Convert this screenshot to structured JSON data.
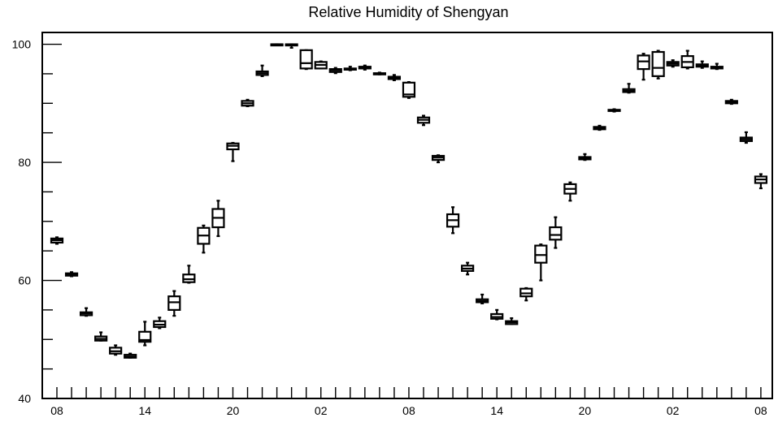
{
  "chart_data": {
    "type": "boxplot",
    "title": "Relative Humidity of Shengyan",
    "xlabel": "",
    "ylabel": "",
    "ylim": [
      40,
      102
    ],
    "y_ticks": [
      40,
      60,
      80,
      100
    ],
    "x_tick_labels": [
      "08",
      "14",
      "20",
      "02",
      "08",
      "14",
      "20",
      "02",
      "08"
    ],
    "x_tick_label_hours": [
      0,
      6,
      12,
      18,
      24,
      30,
      36,
      42,
      48
    ],
    "grid": false,
    "boxes": [
      {
        "h": 0,
        "min": 66.2,
        "q1": 66.4,
        "median": 66.8,
        "q3": 67.1,
        "max": 67.3
      },
      {
        "h": 1,
        "min": 60.7,
        "q1": 60.8,
        "median": 61.0,
        "q3": 61.2,
        "max": 61.4
      },
      {
        "h": 2,
        "min": 54.0,
        "q1": 54.1,
        "median": 54.4,
        "q3": 54.6,
        "max": 55.3
      },
      {
        "h": 3,
        "min": 49.8,
        "q1": 49.8,
        "median": 50.1,
        "q3": 50.5,
        "max": 51.2
      },
      {
        "h": 4,
        "min": 47.4,
        "q1": 47.6,
        "median": 48.0,
        "q3": 48.6,
        "max": 49.0
      },
      {
        "h": 5,
        "min": 46.9,
        "q1": 46.9,
        "median": 47.1,
        "q3": 47.4,
        "max": 47.6
      },
      {
        "h": 6,
        "min": 49.0,
        "q1": 49.6,
        "median": 49.9,
        "q3": 51.3,
        "max": 53.0
      },
      {
        "h": 7,
        "min": 51.9,
        "q1": 52.1,
        "median": 52.5,
        "q3": 53.1,
        "max": 53.7
      },
      {
        "h": 8,
        "min": 54.0,
        "q1": 55.0,
        "median": 56.3,
        "q3": 57.3,
        "max": 58.2
      },
      {
        "h": 9,
        "min": 59.6,
        "q1": 59.7,
        "median": 60.2,
        "q3": 61.0,
        "max": 62.5
      },
      {
        "h": 10,
        "min": 64.7,
        "q1": 66.2,
        "median": 67.6,
        "q3": 68.9,
        "max": 69.3
      },
      {
        "h": 11,
        "min": 67.5,
        "q1": 69.0,
        "median": 70.6,
        "q3": 72.1,
        "max": 73.5
      },
      {
        "h": 12,
        "min": 80.2,
        "q1": 82.2,
        "median": 82.8,
        "q3": 83.2,
        "max": 83.3
      },
      {
        "h": 13,
        "min": 89.5,
        "q1": 89.6,
        "median": 90.0,
        "q3": 90.4,
        "max": 90.6
      },
      {
        "h": 14,
        "min": 94.6,
        "q1": 94.8,
        "median": 95.1,
        "q3": 95.4,
        "max": 96.4
      },
      {
        "h": 15,
        "min": 99.9,
        "q1": 99.9,
        "median": 100.0,
        "q3": 100.0,
        "max": 100.0
      },
      {
        "h": 16,
        "min": 99.4,
        "q1": 99.8,
        "median": 99.9,
        "q3": 100.0,
        "max": 100.0
      },
      {
        "h": 17,
        "min": 95.8,
        "q1": 95.9,
        "median": 96.8,
        "q3": 99.0,
        "max": 99.0
      },
      {
        "h": 18,
        "min": 95.9,
        "q1": 95.9,
        "median": 96.5,
        "q3": 97.0,
        "max": 97.1
      },
      {
        "h": 19,
        "min": 95.1,
        "q1": 95.3,
        "median": 95.6,
        "q3": 95.8,
        "max": 96.0
      },
      {
        "h": 20,
        "min": 95.6,
        "q1": 95.7,
        "median": 95.8,
        "q3": 95.9,
        "max": 96.2
      },
      {
        "h": 21,
        "min": 95.7,
        "q1": 95.9,
        "median": 96.1,
        "q3": 96.2,
        "max": 96.4
      },
      {
        "h": 22,
        "min": 94.9,
        "q1": 94.9,
        "median": 95.0,
        "q3": 95.1,
        "max": 95.2
      },
      {
        "h": 23,
        "min": 93.9,
        "q1": 94.1,
        "median": 94.3,
        "q3": 94.5,
        "max": 94.8
      },
      {
        "h": 24,
        "min": 90.9,
        "q1": 91.1,
        "median": 91.5,
        "q3": 93.5,
        "max": 93.6
      },
      {
        "h": 25,
        "min": 86.3,
        "q1": 86.7,
        "median": 87.2,
        "q3": 87.6,
        "max": 87.9
      },
      {
        "h": 26,
        "min": 80.0,
        "q1": 80.4,
        "median": 80.8,
        "q3": 81.1,
        "max": 81.2
      },
      {
        "h": 27,
        "min": 68.0,
        "q1": 69.1,
        "median": 70.2,
        "q3": 71.2,
        "max": 72.4
      },
      {
        "h": 28,
        "min": 61.0,
        "q1": 61.6,
        "median": 62.0,
        "q3": 62.5,
        "max": 63.0
      },
      {
        "h": 29,
        "min": 56.1,
        "q1": 56.3,
        "median": 56.5,
        "q3": 56.8,
        "max": 57.6
      },
      {
        "h": 30,
        "min": 53.4,
        "q1": 53.5,
        "median": 53.8,
        "q3": 54.3,
        "max": 55.0
      },
      {
        "h": 31,
        "min": 52.6,
        "q1": 52.6,
        "median": 52.9,
        "q3": 53.1,
        "max": 53.6
      },
      {
        "h": 32,
        "min": 56.6,
        "q1": 57.3,
        "median": 57.8,
        "q3": 58.6,
        "max": 58.7
      },
      {
        "h": 33,
        "min": 60.0,
        "q1": 63.0,
        "median": 64.3,
        "q3": 65.9,
        "max": 66.1
      },
      {
        "h": 34,
        "min": 65.5,
        "q1": 66.9,
        "median": 67.7,
        "q3": 69.0,
        "max": 70.7
      },
      {
        "h": 35,
        "min": 73.5,
        "q1": 74.7,
        "median": 75.5,
        "q3": 76.3,
        "max": 76.6
      },
      {
        "h": 36,
        "min": 80.4,
        "q1": 80.5,
        "median": 80.7,
        "q3": 80.9,
        "max": 81.4
      },
      {
        "h": 37,
        "min": 85.5,
        "q1": 85.6,
        "median": 85.8,
        "q3": 86.0,
        "max": 86.2
      },
      {
        "h": 38,
        "min": 88.6,
        "q1": 88.7,
        "median": 88.8,
        "q3": 88.9,
        "max": 89.0
      },
      {
        "h": 39,
        "min": 91.8,
        "q1": 91.9,
        "median": 92.1,
        "q3": 92.4,
        "max": 93.3
      },
      {
        "h": 40,
        "min": 94.0,
        "q1": 95.8,
        "median": 97.1,
        "q3": 98.1,
        "max": 98.4
      },
      {
        "h": 41,
        "min": 94.2,
        "q1": 94.6,
        "median": 96.0,
        "q3": 98.7,
        "max": 98.9
      },
      {
        "h": 42,
        "min": 96.2,
        "q1": 96.4,
        "median": 96.7,
        "q3": 97.0,
        "max": 97.3
      },
      {
        "h": 43,
        "min": 95.9,
        "q1": 96.1,
        "median": 97.0,
        "q3": 98.0,
        "max": 98.9
      },
      {
        "h": 44,
        "min": 96.0,
        "q1": 96.2,
        "median": 96.4,
        "q3": 96.6,
        "max": 97.1
      },
      {
        "h": 45,
        "min": 95.8,
        "q1": 95.9,
        "median": 96.1,
        "q3": 96.2,
        "max": 96.7
      },
      {
        "h": 46,
        "min": 89.9,
        "q1": 90.0,
        "median": 90.2,
        "q3": 90.4,
        "max": 90.6
      },
      {
        "h": 47,
        "min": 83.3,
        "q1": 83.6,
        "median": 83.9,
        "q3": 84.2,
        "max": 85.1
      },
      {
        "h": 48,
        "min": 75.6,
        "q1": 76.5,
        "median": 77.1,
        "q3": 77.6,
        "max": 78.0
      }
    ]
  }
}
